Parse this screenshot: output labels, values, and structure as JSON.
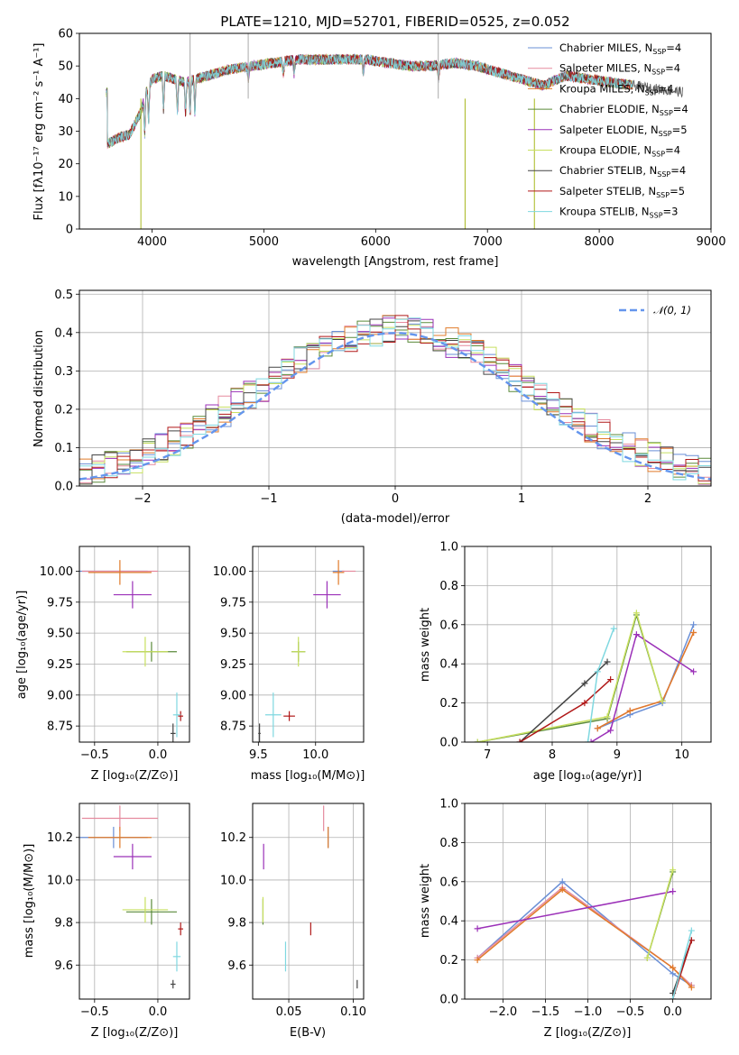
{
  "colors": {
    "chabrier_miles": "#6a8fd6",
    "salpeter_miles": "#e58a9e",
    "kroupa_miles": "#e07b2a",
    "chabrier_elodie": "#5a8a3a",
    "salpeter_elodie": "#9b30b8",
    "kroupa_elodie": "#c8e060",
    "chabrier_stelib": "#444444",
    "salpeter_stelib": "#b01818",
    "kroupa_stelib": "#7fd8e0",
    "normal_curve": "#6495ed"
  },
  "chart_data": [
    {
      "id": "spectrum",
      "type": "line",
      "title": "PLATE=1210, MJD=52701, FIBERID=0525, z=0.052",
      "xlabel": "wavelength [Angstrom, rest frame]",
      "ylabel": "Flux [fλ10⁻¹⁷ erg cm⁻² s⁻¹ A⁻¹]",
      "xlim": [
        3350,
        9000
      ],
      "ylim": [
        0,
        60
      ],
      "xticks": [
        "4000",
        "5000",
        "6000",
        "7000",
        "8000",
        "9000"
      ],
      "yticks": [
        "0",
        "10",
        "20",
        "30",
        "40",
        "50",
        "60"
      ],
      "grid": false,
      "legend_position": "top-right",
      "legend": [
        "Chabrier MILES, N_SSP=4",
        "Salpeter MILES, N_SSP=4",
        "Kroupa MILES, N_SSP=4",
        "Chabrier ELODIE, N_SSP=4",
        "Salpeter ELODIE, N_SSP=5",
        "Kroupa ELODIE, N_SSP=4",
        "Chabrier STELIB, N_SSP=4",
        "Salpeter STELIB, N_SSP=5",
        "Kroupa STELIB, N_SSP=3"
      ],
      "continuum": {
        "x": [
          3600,
          3700,
          3800,
          3900,
          3950,
          4000,
          4100,
          4200,
          4300,
          4500,
          4700,
          4900,
          5100,
          5300,
          5500,
          5700,
          5900,
          6100,
          6300,
          6500,
          6700,
          6900,
          7100,
          7300,
          7500,
          7700,
          7900,
          8100,
          8300,
          8500,
          8750
        ],
        "y": [
          26,
          28,
          29,
          36,
          42,
          46,
          47,
          46,
          45,
          47,
          49,
          50,
          51,
          52,
          52,
          52,
          52,
          51,
          50,
          50,
          51,
          50,
          48,
          46,
          44,
          47,
          46,
          45,
          44,
          43,
          42
        ]
      },
      "spikes": [
        {
          "x": 3900,
          "y": 0
        },
        {
          "x": 6800,
          "y": 0
        },
        {
          "x": 7420,
          "y": 0
        },
        {
          "x": 4340,
          "y": 60
        },
        {
          "x": 4860,
          "y": 60
        },
        {
          "x": 6560,
          "y": 60
        }
      ]
    },
    {
      "id": "residuals",
      "type": "step",
      "xlabel": "(data-model)/error",
      "ylabel": "Normed distribution",
      "xlim": [
        -2.5,
        2.5
      ],
      "ylim": [
        0,
        0.51
      ],
      "xticks": [
        "−2",
        "−1",
        "0",
        "1",
        "2"
      ],
      "yticks": [
        "0.0",
        "0.1",
        "0.2",
        "0.3",
        "0.4",
        "0.5"
      ],
      "grid": true,
      "legend_position": "top-right",
      "legend": [
        "𝒩(0, 1)"
      ],
      "bin_start": -2.5,
      "bin_width": 0.1
    },
    {
      "id": "age-vs-z",
      "type": "errorbar",
      "xlabel": "Z [log₁₀(Z/Z⊙)]",
      "ylabel": "age  [log₁₀(age/yr)]",
      "xlim": [
        -0.62,
        0.25
      ],
      "ylim": [
        8.62,
        10.2
      ],
      "xticks": [
        "−0.5",
        "0.0"
      ],
      "yticks": [
        "8.75",
        "9.00",
        "9.25",
        "9.50",
        "9.75",
        "10.00"
      ],
      "grid": true,
      "points": [
        {
          "c": "chabrier_miles",
          "x": -0.35,
          "xe": 0.27,
          "y": 10.0,
          "ye": 0.0
        },
        {
          "c": "salpeter_miles",
          "x": -0.3,
          "xe": 0.3,
          "y": 10.0,
          "ye": 0.0
        },
        {
          "c": "kroupa_miles",
          "x": -0.3,
          "xe": 0.25,
          "y": 9.99,
          "ye": 0.1
        },
        {
          "c": "chabrier_elodie",
          "x": -0.05,
          "xe": 0.2,
          "y": 9.35,
          "ye": 0.08
        },
        {
          "c": "salpeter_elodie",
          "x": -0.2,
          "xe": 0.15,
          "y": 9.81,
          "ye": 0.11
        },
        {
          "c": "kroupa_elodie",
          "x": -0.1,
          "xe": 0.18,
          "y": 9.35,
          "ye": 0.12
        },
        {
          "c": "chabrier_stelib",
          "x": 0.12,
          "xe": 0.02,
          "y": 8.69,
          "ye": 0.08
        },
        {
          "c": "salpeter_stelib",
          "x": 0.18,
          "xe": 0.02,
          "y": 8.83,
          "ye": 0.04
        },
        {
          "c": "kroupa_stelib",
          "x": 0.15,
          "xe": 0.03,
          "y": 8.84,
          "ye": 0.18
        }
      ]
    },
    {
      "id": "age-vs-mass",
      "type": "errorbar",
      "xlabel": "mass [log₁₀(M/M⊙)]",
      "ylabel": "",
      "xlim": [
        9.45,
        10.42
      ],
      "ylim": [
        8.62,
        10.2
      ],
      "xticks": [
        "9.5",
        "10.0"
      ],
      "yticks": [
        "8.75",
        "9.00",
        "9.25",
        "9.50",
        "9.75",
        "10.00"
      ],
      "grid": true,
      "points": [
        {
          "c": "chabrier_miles",
          "x": 10.2,
          "xe": 0.05,
          "y": 10.0,
          "ye": 0.0
        },
        {
          "c": "salpeter_miles",
          "x": 10.29,
          "xe": 0.06,
          "y": 10.0,
          "ye": 0.0
        },
        {
          "c": "kroupa_miles",
          "x": 10.2,
          "xe": 0.05,
          "y": 9.99,
          "ye": 0.1
        },
        {
          "c": "chabrier_elodie",
          "x": 9.85,
          "xe": 0.06,
          "y": 9.35,
          "ye": 0.08
        },
        {
          "c": "salpeter_elodie",
          "x": 10.1,
          "xe": 0.12,
          "y": 9.81,
          "ye": 0.11
        },
        {
          "c": "kroupa_elodie",
          "x": 9.85,
          "xe": 0.06,
          "y": 9.35,
          "ye": 0.12
        },
        {
          "c": "chabrier_stelib",
          "x": 9.51,
          "xe": 0.01,
          "y": 8.69,
          "ye": 0.08
        },
        {
          "c": "salpeter_stelib",
          "x": 9.77,
          "xe": 0.05,
          "y": 8.83,
          "ye": 0.04
        },
        {
          "c": "kroupa_stelib",
          "x": 9.63,
          "xe": 0.07,
          "y": 8.84,
          "ye": 0.18
        }
      ]
    },
    {
      "id": "mass-weight-vs-age",
      "type": "line",
      "xlabel": "age  [log₁₀(age/yr)]",
      "ylabel": "mass weight",
      "xlim": [
        6.65,
        10.45
      ],
      "ylim": [
        0,
        1
      ],
      "xticks": [
        "7",
        "8",
        "9",
        "10"
      ],
      "yticks": [
        "0.0",
        "0.2",
        "0.4",
        "0.6",
        "0.8",
        "1.0"
      ],
      "grid": true,
      "series": [
        {
          "c": "chabrier_miles",
          "x": [
            8.7,
            9.2,
            9.7,
            10.18
          ],
          "y": [
            0.07,
            0.14,
            0.2,
            0.6
          ]
        },
        {
          "c": "salpeter_miles",
          "x": [
            8.7,
            9.2,
            9.7,
            10.18
          ],
          "y": [
            0.07,
            0.16,
            0.21,
            0.56
          ]
        },
        {
          "c": "kroupa_miles",
          "x": [
            8.7,
            9.2,
            9.7,
            10.18
          ],
          "y": [
            0.07,
            0.16,
            0.21,
            0.56
          ]
        },
        {
          "c": "chabrier_elodie",
          "x": [
            6.85,
            8.85,
            9.3,
            9.7
          ],
          "y": [
            0.0,
            0.12,
            0.65,
            0.21
          ]
        },
        {
          "c": "salpeter_elodie",
          "x": [
            8.6,
            8.9,
            9.3,
            10.18
          ],
          "y": [
            0.0,
            0.06,
            0.55,
            0.36
          ]
        },
        {
          "c": "kroupa_elodie",
          "x": [
            6.85,
            8.85,
            9.3,
            9.7
          ],
          "y": [
            0.0,
            0.13,
            0.66,
            0.21
          ]
        },
        {
          "c": "chabrier_stelib",
          "x": [
            7.5,
            8.5,
            8.85
          ],
          "y": [
            0.0,
            0.3,
            0.41
          ]
        },
        {
          "c": "salpeter_stelib",
          "x": [
            7.5,
            8.5,
            8.9
          ],
          "y": [
            0.0,
            0.2,
            0.32
          ]
        },
        {
          "c": "kroupa_stelib",
          "x": [
            8.55,
            8.7,
            8.95
          ],
          "y": [
            0.0,
            0.36,
            0.58
          ]
        }
      ]
    },
    {
      "id": "mass-vs-z",
      "type": "errorbar",
      "xlabel": "Z [log₁₀(Z/Z⊙)]",
      "ylabel": "mass [log₁₀(M/M⊙)]",
      "xlim": [
        -0.62,
        0.25
      ],
      "ylim": [
        9.44,
        10.36
      ],
      "xticks": [
        "−0.5",
        "0.0"
      ],
      "yticks": [
        "9.6",
        "9.8",
        "10.0",
        "10.2"
      ],
      "grid": true,
      "points": [
        {
          "c": "chabrier_miles",
          "x": -0.35,
          "xe": 0.27,
          "y": 10.2,
          "ye": 0.05
        },
        {
          "c": "salpeter_miles",
          "x": -0.3,
          "xe": 0.3,
          "y": 10.29,
          "ye": 0.06
        },
        {
          "c": "kroupa_miles",
          "x": -0.3,
          "xe": 0.25,
          "y": 10.2,
          "ye": 0.05
        },
        {
          "c": "chabrier_elodie",
          "x": -0.05,
          "xe": 0.2,
          "y": 9.85,
          "ye": 0.06
        },
        {
          "c": "salpeter_elodie",
          "x": -0.2,
          "xe": 0.15,
          "y": 10.11,
          "ye": 0.06
        },
        {
          "c": "kroupa_elodie",
          "x": -0.1,
          "xe": 0.18,
          "y": 9.86,
          "ye": 0.06
        },
        {
          "c": "chabrier_stelib",
          "x": 0.12,
          "xe": 0.02,
          "y": 9.51,
          "ye": 0.02
        },
        {
          "c": "salpeter_stelib",
          "x": 0.18,
          "xe": 0.02,
          "y": 9.77,
          "ye": 0.03
        },
        {
          "c": "kroupa_stelib",
          "x": 0.15,
          "xe": 0.03,
          "y": 9.64,
          "ye": 0.07
        }
      ]
    },
    {
      "id": "mass-vs-ebv",
      "type": "errorbar",
      "xlabel": "E(B-V)",
      "ylabel": "",
      "xlim": [
        0.022,
        0.108
      ],
      "ylim": [
        9.44,
        10.36
      ],
      "xticks": [
        "0.05",
        "0.10"
      ],
      "yticks": [
        "9.6",
        "9.8",
        "10.0",
        "10.2"
      ],
      "grid": true,
      "points": [
        {
          "c": "chabrier_miles",
          "x": 0.0805,
          "xe": 0.0,
          "y": 10.2,
          "ye": 0.05
        },
        {
          "c": "salpeter_miles",
          "x": 0.077,
          "xe": 0.0,
          "y": 10.29,
          "ye": 0.06
        },
        {
          "c": "kroupa_miles",
          "x": 0.0805,
          "xe": 0.0,
          "y": 10.2,
          "ye": 0.05
        },
        {
          "c": "chabrier_elodie",
          "x": 0.03,
          "xe": 0.0,
          "y": 9.85,
          "ye": 0.06
        },
        {
          "c": "salpeter_elodie",
          "x": 0.0305,
          "xe": 0.0,
          "y": 10.11,
          "ye": 0.06
        },
        {
          "c": "kroupa_elodie",
          "x": 0.03,
          "xe": 0.0,
          "y": 9.86,
          "ye": 0.06
        },
        {
          "c": "chabrier_stelib",
          "x": 0.103,
          "xe": 0.0,
          "y": 9.51,
          "ye": 0.02
        },
        {
          "c": "salpeter_stelib",
          "x": 0.067,
          "xe": 0.0,
          "y": 9.77,
          "ye": 0.03
        },
        {
          "c": "kroupa_stelib",
          "x": 0.0475,
          "xe": 0.0,
          "y": 9.64,
          "ye": 0.07
        }
      ]
    },
    {
      "id": "mass-weight-vs-z",
      "type": "line",
      "xlabel": "Z [log₁₀(Z/Z⊙)]",
      "ylabel": "mass weight",
      "xlim": [
        -2.45,
        0.45
      ],
      "ylim": [
        0,
        1
      ],
      "xticks": [
        "−2.0",
        "−1.5",
        "−1.0",
        "−0.5",
        "0.0"
      ],
      "yticks": [
        "0.0",
        "0.2",
        "0.4",
        "0.6",
        "0.8",
        "1.0"
      ],
      "grid": true,
      "series": [
        {
          "c": "chabrier_miles",
          "x": [
            -2.3,
            -1.3,
            0.0,
            0.22
          ],
          "y": [
            0.21,
            0.6,
            0.13,
            0.07
          ]
        },
        {
          "c": "salpeter_miles",
          "x": [
            -2.3,
            -1.3,
            0.0,
            0.22
          ],
          "y": [
            0.21,
            0.57,
            0.16,
            0.07
          ]
        },
        {
          "c": "kroupa_miles",
          "x": [
            -2.3,
            -1.3,
            0.0,
            0.22
          ],
          "y": [
            0.2,
            0.56,
            0.16,
            0.06
          ]
        },
        {
          "c": "chabrier_elodie",
          "x": [
            -0.3,
            0.0
          ],
          "y": [
            0.21,
            0.65
          ]
        },
        {
          "c": "salpeter_elodie",
          "x": [
            -2.3,
            0.0
          ],
          "y": [
            0.36,
            0.55
          ]
        },
        {
          "c": "kroupa_elodie",
          "x": [
            -0.3,
            0.0
          ],
          "y": [
            0.21,
            0.66
          ]
        },
        {
          "c": "chabrier_stelib",
          "x": [
            0.0,
            0.22
          ],
          "y": [
            0.03,
            0.3
          ]
        },
        {
          "c": "salpeter_stelib",
          "x": [
            0.0,
            0.22
          ],
          "y": [
            0.0,
            0.3
          ]
        },
        {
          "c": "kroupa_stelib",
          "x": [
            0.0,
            0.22
          ],
          "y": [
            0.0,
            0.35
          ]
        }
      ]
    }
  ]
}
